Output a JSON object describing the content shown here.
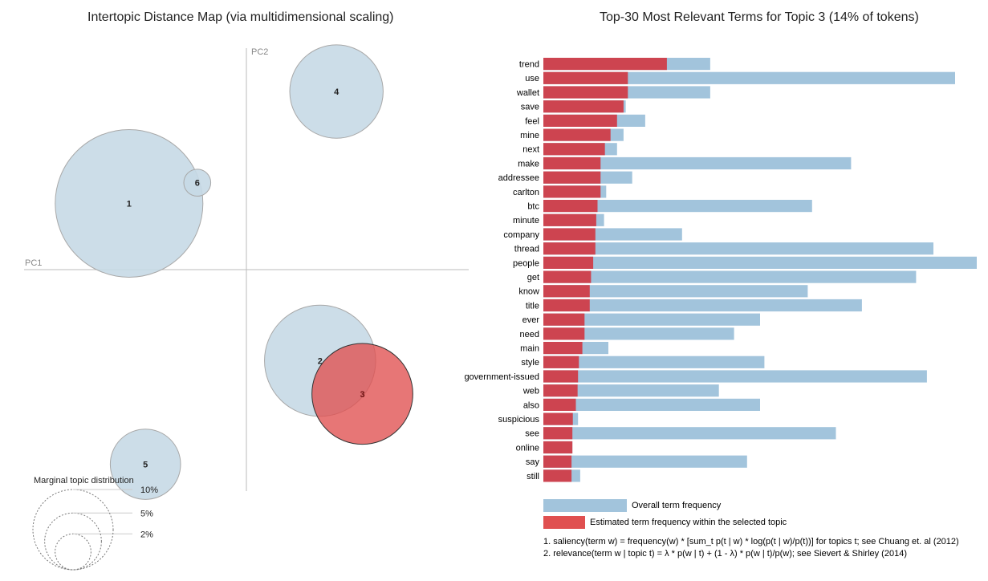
{
  "page": {
    "left_title": "Intertopic Distance Map (via multidimensional scaling)",
    "right_title": "Top-30 Most Relevant Terms for Topic 3 (14% of tokens)"
  },
  "colors": {
    "topic_fill": "#c6d9e6",
    "selected_fill": "#e05050",
    "overall_bar": "#a2c4dc",
    "topic_bar": "#cd4450",
    "axis": "#bbbbbb"
  },
  "chart_data": [
    {
      "type": "scatter",
      "title": "Intertopic Distance Map (via multidimensional scaling)",
      "xlabel": "PC1",
      "ylabel": "PC2",
      "grid": false,
      "selected_topic": "3",
      "points": [
        {
          "label": "1",
          "x": -0.86,
          "y": 0.32,
          "size": 30.0
        },
        {
          "label": "2",
          "x": 0.54,
          "y": -0.44,
          "size": 17.0
        },
        {
          "label": "3",
          "x": 0.85,
          "y": -0.6,
          "size": 14.0
        },
        {
          "label": "4",
          "x": 0.66,
          "y": 0.86,
          "size": 12.0
        },
        {
          "label": "5",
          "x": -0.74,
          "y": -0.94,
          "size": 6.8
        },
        {
          "label": "6",
          "x": -0.36,
          "y": 0.42,
          "size": 1.0
        }
      ],
      "legend": {
        "title": "Marginal topic distribution",
        "entries": [
          "2%",
          "5%",
          "10%"
        ],
        "values": [
          2,
          5,
          10
        ]
      }
    },
    {
      "type": "bar",
      "orientation": "horizontal",
      "title": "Top-30 Most Relevant Terms for Topic 3 (14% of tokens)",
      "categories": [
        "trend",
        "use",
        "wallet",
        "save",
        "feel",
        "mine",
        "next",
        "make",
        "addressee",
        "carlton",
        "btc",
        "minute",
        "company",
        "thread",
        "people",
        "get",
        "know",
        "title",
        "ever",
        "need",
        "main",
        "style",
        "government-issued",
        "web",
        "also",
        "suspicious",
        "see",
        "online",
        "say",
        "still"
      ],
      "series": [
        {
          "name": "Overall term frequency",
          "values": [
            38.5,
            95,
            38.5,
            19,
            23.5,
            18.5,
            17,
            71,
            20.5,
            14.5,
            62,
            14,
            32,
            90,
            100,
            86,
            61,
            73.5,
            50,
            44,
            15,
            51,
            88.5,
            40.5,
            50,
            8,
            67.5,
            6.7,
            47,
            8.5
          ]
        },
        {
          "name": "Estimated term frequency within the selected topic",
          "values": [
            28.5,
            19.5,
            19.5,
            18.5,
            17,
            15.5,
            14.2,
            13.2,
            13.2,
            13.2,
            12.5,
            12.2,
            12,
            12,
            11.5,
            11,
            10.7,
            10.7,
            9.5,
            9.5,
            9,
            8.2,
            8,
            7.9,
            7.5,
            6.8,
            6.7,
            6.7,
            6.5,
            6.5
          ]
        }
      ],
      "xlim": [
        0,
        100
      ],
      "footnotes": [
        "1. saliency(term w) = frequency(w) * [sum_t p(t | w) * log(p(t | w)/p(t))] for topics t; see Chuang et. al (2012)",
        "2. relevance(term w | topic t) = λ * p(w | t) + (1 - λ) * p(w | t)/p(w); see Sievert & Shirley (2014)"
      ]
    }
  ]
}
